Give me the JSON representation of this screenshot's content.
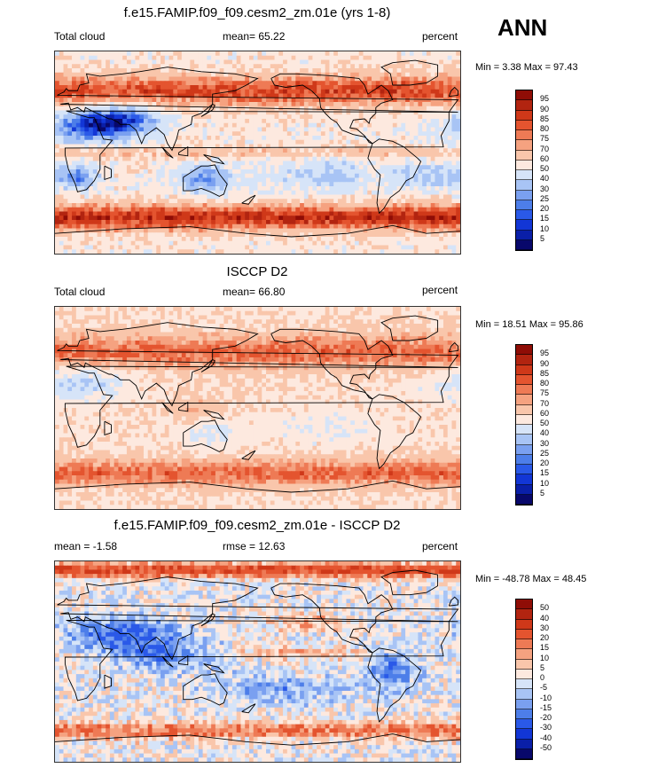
{
  "season": "ANN",
  "colors": {
    "seq": [
      "#08086b",
      "#0a1fa8",
      "#1236d6",
      "#2a59e8",
      "#4d7ee9",
      "#7aa0f0",
      "#a8c4f5",
      "#d6e4f8",
      "#fde9df",
      "#f9c6ab",
      "#f5a280",
      "#ee7a55",
      "#e4542f",
      "#cf3819",
      "#b22410",
      "#8f0d06"
    ],
    "land": "#000000",
    "background": "#ffffff"
  },
  "panels": [
    {
      "title": "f.e15.FAMIP.f09_f09.cesm2_zm.01e (yrs 1-8)",
      "left": "Total cloud",
      "center": "mean=  65.22",
      "right": "percent",
      "minmax": "Min =   3.38 Max =  97.43",
      "levels": [
        "95",
        "90",
        "85",
        "80",
        "75",
        "70",
        "60",
        "50",
        "40",
        "30",
        "25",
        "20",
        "15",
        "10",
        "5"
      ],
      "style": "model"
    },
    {
      "title": "ISCCP D2",
      "left": "Total cloud",
      "center": "mean=  66.80",
      "right": "percent",
      "minmax": "Min =  18.51 Max =  95.86",
      "levels": [
        "95",
        "90",
        "85",
        "80",
        "75",
        "70",
        "60",
        "50",
        "40",
        "30",
        "25",
        "20",
        "15",
        "10",
        "5"
      ],
      "style": "obs"
    },
    {
      "title": "f.e15.FAMIP.f09_f09.cesm2_zm.01e - ISCCP D2",
      "left": "mean =  -1.58",
      "center": "rmse =  12.63",
      "right": "percent",
      "minmax": "Min = -48.78 Max =  48.45",
      "levels": [
        "50",
        "40",
        "30",
        "20",
        "15",
        "10",
        "5",
        "0",
        "-5",
        "-10",
        "-15",
        "-20",
        "-30",
        "-40",
        "-50"
      ],
      "style": "diff"
    }
  ]
}
